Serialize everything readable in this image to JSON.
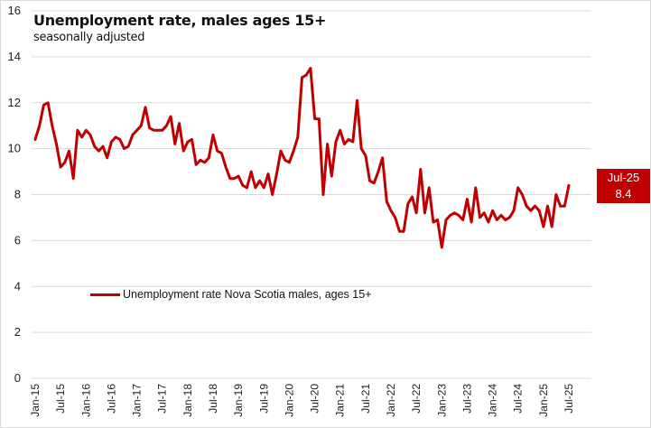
{
  "chart_data": {
    "type": "line",
    "title": "Unemployment rate, males ages 15+",
    "subtitle": "seasonally adjusted",
    "xlabel": "",
    "ylabel": "",
    "ylim": [
      0,
      16
    ],
    "yticks": [
      0,
      2,
      4,
      6,
      8,
      10,
      12,
      14,
      16
    ],
    "ytick_labels": [
      "0",
      "2",
      "4",
      "6",
      "8",
      "10",
      "12",
      "14",
      "16"
    ],
    "grid": true,
    "legend_position": "center-left",
    "x_start": "Jan-15",
    "x_end": "Jul-25",
    "frequency": "monthly",
    "xtick_labels": [
      "Jan-15",
      "Jul-15",
      "Jan-16",
      "Jul-16",
      "Jan-17",
      "Jul-17",
      "Jan-18",
      "Jul-18",
      "Jan-19",
      "Jul-19",
      "Jan-20",
      "Jul-20",
      "Jan-21",
      "Jul-21",
      "Jan-22",
      "Jul-22",
      "Jan-23",
      "Jul-23",
      "Jan-24",
      "Jul-24",
      "Jan-25",
      "Jul-25"
    ],
    "series": [
      {
        "name": "Unemployment rate Nova Scotia males, ages 15+",
        "color": "#c00000",
        "values": [
          10.4,
          11.0,
          11.9,
          12.0,
          11.0,
          10.2,
          9.2,
          9.4,
          9.9,
          8.7,
          10.8,
          10.5,
          10.8,
          10.6,
          10.1,
          9.9,
          10.1,
          9.6,
          10.3,
          10.5,
          10.4,
          10.0,
          10.1,
          10.6,
          10.8,
          11.0,
          11.8,
          10.9,
          10.8,
          10.8,
          10.8,
          11.0,
          11.4,
          10.2,
          11.1,
          9.9,
          10.3,
          10.4,
          9.3,
          9.5,
          9.4,
          9.6,
          10.6,
          9.9,
          9.8,
          9.2,
          8.7,
          8.7,
          8.8,
          8.4,
          8.3,
          9.0,
          8.3,
          8.6,
          8.3,
          8.9,
          8.0,
          8.9,
          9.9,
          9.5,
          9.4,
          9.9,
          10.5,
          13.1,
          13.2,
          13.5,
          11.3,
          11.3,
          8.0,
          10.2,
          8.8,
          10.3,
          10.8,
          10.2,
          10.4,
          10.3,
          12.1,
          10.0,
          9.7,
          8.6,
          8.5,
          9.0,
          9.6,
          7.7,
          7.3,
          7.0,
          6.4,
          6.4,
          7.6,
          7.9,
          7.2,
          9.1,
          7.2,
          8.3,
          6.8,
          6.9,
          5.7,
          6.9,
          7.1,
          7.2,
          7.1,
          6.9,
          7.8,
          6.8,
          8.3,
          7.0,
          7.2,
          6.8,
          7.3,
          6.9,
          7.1,
          6.9,
          7.0,
          7.3,
          8.3,
          8.0,
          7.5,
          7.3,
          7.5,
          7.3,
          6.6,
          7.5,
          6.6,
          8.0,
          7.5,
          7.5,
          8.4
        ]
      }
    ],
    "annotations": [
      {
        "label": "Jul-25",
        "value": "8.4",
        "color": "#c00000"
      }
    ]
  }
}
